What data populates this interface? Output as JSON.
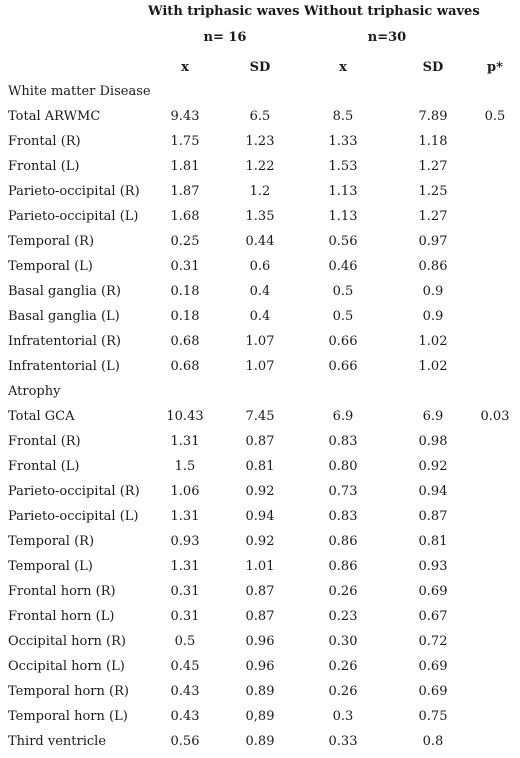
{
  "header": {
    "group1": "With triphasic waves",
    "group2": "Without triphasic waves",
    "n1": "n= 16",
    "n2": "n=30",
    "cols": [
      "x",
      "SD",
      "x",
      "SD",
      "p*"
    ]
  },
  "sections": [
    {
      "title": "White matter Disease",
      "rows": [
        [
          "Total ARWMC",
          "9.43",
          "6.5",
          "8.5",
          "7.89",
          "0.5"
        ],
        [
          "Frontal (R)",
          "1.75",
          "1.23",
          "1.33",
          "1.18",
          ""
        ],
        [
          "Frontal (L)",
          "1.81",
          "1.22",
          "1.53",
          "1.27",
          ""
        ],
        [
          "Parieto-occipital (R)",
          "1.87",
          "1.2",
          "1.13",
          "1.25",
          ""
        ],
        [
          "Parieto-occipital (L)",
          "1.68",
          "1.35",
          "1.13",
          "1.27",
          ""
        ],
        [
          "Temporal (R)",
          "0.25",
          "0.44",
          "0.56",
          "0.97",
          ""
        ],
        [
          "Temporal (L)",
          "0.31",
          "0.6",
          "0.46",
          "0.86",
          ""
        ],
        [
          "Basal ganglia (R)",
          "0.18",
          "0.4",
          "0.5",
          "0.9",
          ""
        ],
        [
          "Basal ganglia (L)",
          "0.18",
          "0.4",
          "0.5",
          "0.9",
          ""
        ],
        [
          "Infratentorial (R)",
          "0.68",
          "1.07",
          "0.66",
          "1.02",
          ""
        ],
        [
          "Infratentorial (L)",
          "0.68",
          "1.07",
          "0.66",
          "1.02",
          ""
        ]
      ]
    },
    {
      "title": "Atrophy",
      "rows": [
        [
          "Total GCA",
          "10.43",
          "7.45",
          "6.9",
          "6.9",
          "0.03"
        ],
        [
          "Frontal (R)",
          "1.31",
          "0.87",
          "0.83",
          "0.98",
          ""
        ],
        [
          "Frontal (L)",
          "1.5",
          "0.81",
          "0.80",
          "0.92",
          ""
        ],
        [
          "Parieto-occipital (R)",
          "1.06",
          "0.92",
          "0.73",
          "0.94",
          ""
        ],
        [
          "Parieto-occipital (L)",
          "1.31",
          "0.94",
          "0.83",
          "0.87",
          ""
        ],
        [
          "Temporal (R)",
          "0.93",
          "0.92",
          "0.86",
          "0.81",
          ""
        ],
        [
          "Temporal (L)",
          "1.31",
          "1.01",
          "0.86",
          "0.93",
          ""
        ],
        [
          "Frontal horn (R)",
          "0.31",
          "0.87",
          "0.26",
          "0.69",
          ""
        ],
        [
          "Frontal horn (L)",
          "0.31",
          "0.87",
          "0.23",
          "0.67",
          ""
        ],
        [
          "Occipital horn (R)",
          "0.5",
          "0.96",
          "0.30",
          "0.72",
          ""
        ],
        [
          "Occipital horn (L)",
          "0.45",
          "0.96",
          "0.26",
          "0.69",
          ""
        ],
        [
          "Temporal horn (R)",
          "0.43",
          "0.89",
          "0.26",
          "0.69",
          ""
        ],
        [
          "Temporal horn (L)",
          "0.43",
          "0,89",
          "0.3",
          "0.75",
          ""
        ],
        [
          "Third ventricle",
          "0.56",
          "0.89",
          "0.33",
          "0.8",
          ""
        ]
      ]
    }
  ]
}
